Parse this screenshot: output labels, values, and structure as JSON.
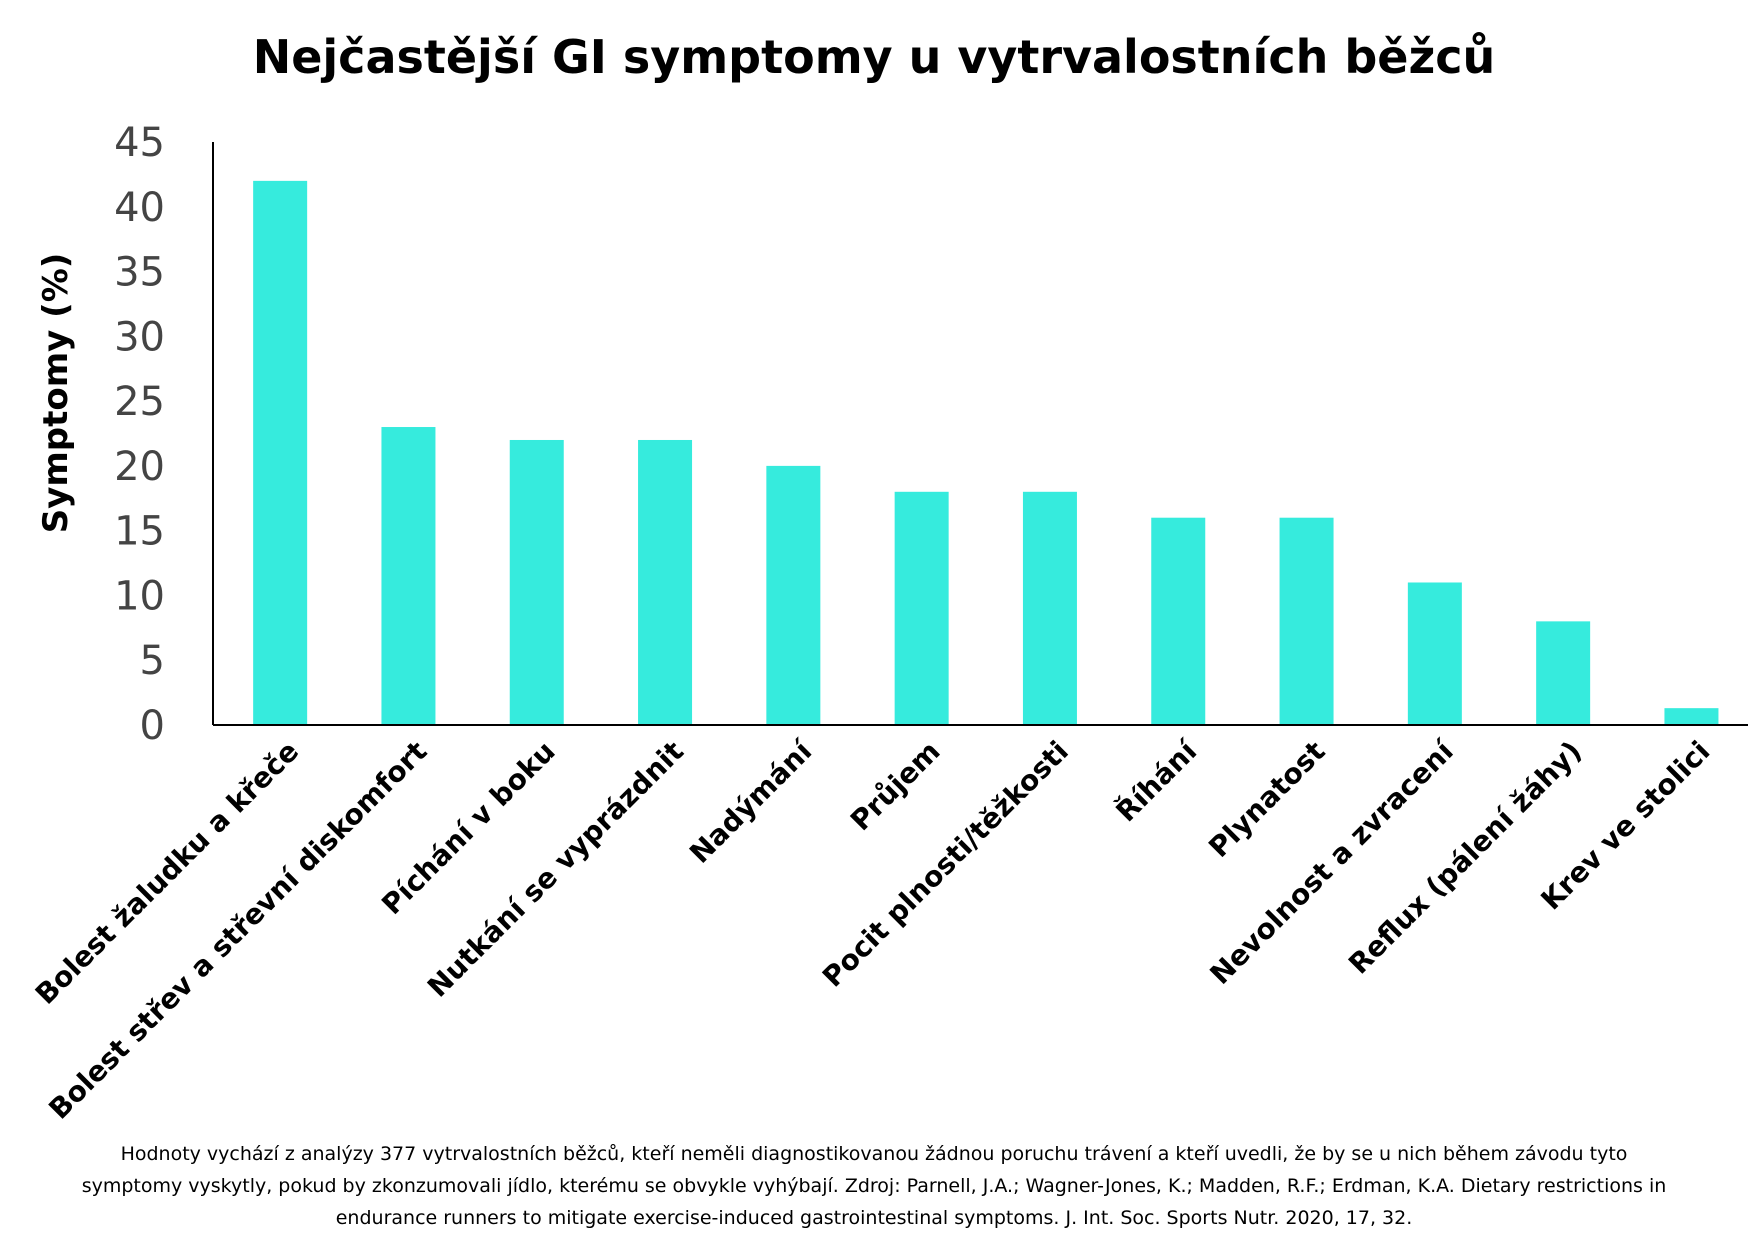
{
  "chart_data": {
    "type": "bar",
    "title": "Nejčastější GI symptomy u vytrvalostních běžců",
    "ylabel": "Symptomy (%)",
    "xlabel": "",
    "ylim": [
      0,
      45
    ],
    "yticks": [
      "0",
      "5",
      "10",
      "15",
      "20",
      "25",
      "30",
      "35",
      "40",
      "45"
    ],
    "categories": [
      "Bolest žaludku a křeče",
      "Bolest střev a střevní diskomfort",
      "Píchání v boku",
      "Nutkání se vyprázdnit",
      "Nadýmání",
      "Průjem",
      "Pocit plnosti/těžkosti",
      "Říhání",
      "Plynatost",
      "Nevolnost a zvracení",
      "Reflux (pálení žáhy)",
      "Krev ve stolici"
    ],
    "values": [
      42,
      23,
      22,
      22,
      20,
      18,
      18,
      16,
      16,
      11,
      8,
      1.3
    ],
    "bar_color": "#36ebdd",
    "grid": false,
    "legend": "none"
  },
  "footnote": "Hodnoty vychází z analýzy 377 vytrvalostních běžců, kteří neměli diagnostikovanou žádnou poruchu trávení a kteří uvedli, že by se u nich během závodu tyto symptomy vyskytly, pokud by zkonzumovali jídlo, kterému se obvykle vyhýbají. Zdroj: Parnell, J.A.; Wagner-Jones, K.; Madden, R.F.; Erdman, K.A. Dietary restrictions in endurance runners to mitigate exercise-induced gastrointestinal symptoms. J. Int. Soc. Sports Nutr. 2020, 17, 32."
}
